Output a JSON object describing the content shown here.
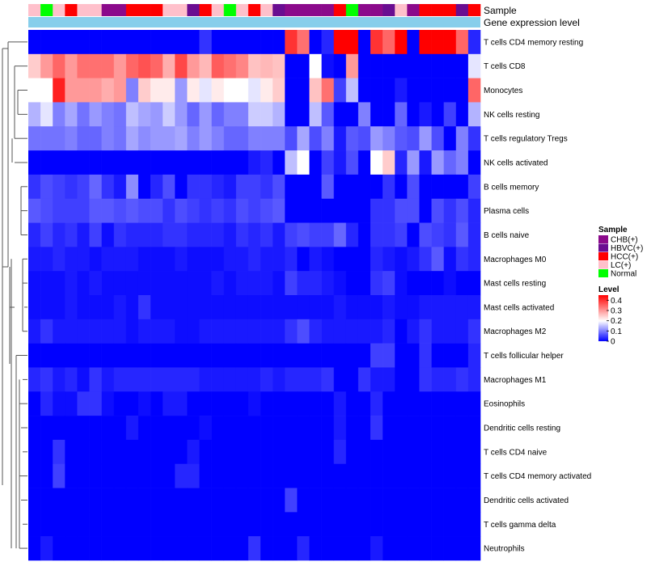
{
  "chart_data": {
    "type": "heatmap",
    "annotation_labels": [
      "Sample",
      "Gene expression level"
    ],
    "sample_colors": {
      "CHB(+)": "#8B0A8B",
      "HBVC(+)": "#6A0D91",
      "HCC(+)": "#FF0000",
      "LC(+)": "#FFC0CB",
      "Normal": "#00FF00"
    },
    "gene_expression_color": "#87CEEB",
    "columns": [
      "LC(+)",
      "Normal",
      "LC(+)",
      "HCC(+)",
      "LC(+)",
      "LC(+)",
      "CHB(+)",
      "CHB(+)",
      "HCC(+)",
      "HCC(+)",
      "HCC(+)",
      "LC(+)",
      "LC(+)",
      "HBVC(+)",
      "HCC(+)",
      "LC(+)",
      "Normal",
      "LC(+)",
      "HCC(+)",
      "LC(+)",
      "HBVC(+)",
      "CHB(+)",
      "CHB(+)",
      "CHB(+)",
      "CHB(+)",
      "HCC(+)",
      "Normal",
      "CHB(+)",
      "CHB(+)",
      "HBVC(+)",
      "LC(+)",
      "CHB(+)",
      "HCC(+)",
      "HCC(+)",
      "HCC(+)",
      "HBVC(+)",
      "HCC(+)"
    ],
    "rows": [
      "T cells CD4 memory resting",
      "T cells CD8",
      "Monocytes",
      "NK cells resting",
      "T cells regulatory  Tregs",
      "NK cells activated",
      "B cells memory",
      "Plasma cells",
      "B cells naive",
      "Macrophages M0",
      "Mast cells resting",
      "Mast cells activated",
      "Macrophages M2",
      "T cells follicular helper",
      "Macrophages M1",
      "Eosinophils",
      "Dendritic cells resting",
      "T cells CD4 naive",
      "T cells CD4 memory activated",
      "Dendritic cells activated",
      "T cells gamma delta",
      "Neutrophils"
    ],
    "values": [
      [
        0,
        0,
        0,
        0,
        0,
        0,
        0,
        0,
        0,
        0,
        0,
        0,
        0,
        0,
        0.04,
        0,
        0,
        0,
        0,
        0,
        0,
        0.4,
        0.34,
        0,
        0.03,
        0.45,
        0.45,
        0,
        0.4,
        0.35,
        0.45,
        0,
        0.45,
        0.45,
        0.45,
        0.35,
        0.03
      ],
      [
        0.25,
        0.3,
        0.35,
        0.3,
        0.34,
        0.34,
        0.34,
        0.3,
        0.35,
        0.37,
        0.35,
        0.28,
        0.38,
        0.3,
        0.27,
        0.36,
        0.34,
        0.32,
        0.26,
        0.27,
        0.26,
        0,
        0,
        0.2,
        0.01,
        0,
        0.3,
        0,
        0,
        0,
        0,
        0,
        0,
        0,
        0,
        0,
        0.18
      ],
      [
        0.2,
        0.2,
        0.42,
        0.3,
        0.3,
        0.3,
        0.28,
        0.3,
        0.1,
        0.25,
        0.22,
        0.22,
        0.12,
        0.22,
        0.18,
        0.22,
        0.2,
        0.2,
        0.18,
        0.22,
        0.25,
        0,
        0,
        0.26,
        0.34,
        0.05,
        0.15,
        0,
        0,
        0,
        0.02,
        0,
        0,
        0,
        0,
        0,
        0.35
      ],
      [
        0.14,
        0.18,
        0.1,
        0.13,
        0.09,
        0.12,
        0.1,
        0.09,
        0.15,
        0.13,
        0.12,
        0.16,
        0.12,
        0.08,
        0.12,
        0.08,
        0.1,
        0.1,
        0.16,
        0.16,
        0.14,
        0,
        0,
        0.15,
        0.07,
        0,
        0,
        0.1,
        0,
        0,
        0.08,
        0,
        0.02,
        0,
        0.05,
        0,
        0.14
      ],
      [
        0.09,
        0.09,
        0.09,
        0.1,
        0.08,
        0.08,
        0.1,
        0.09,
        0.13,
        0.11,
        0.12,
        0.12,
        0.13,
        0.1,
        0.12,
        0.1,
        0.08,
        0.08,
        0.1,
        0.1,
        0.1,
        0.06,
        0.13,
        0.06,
        0.1,
        0.02,
        0.07,
        0.06,
        0.12,
        0.1,
        0.07,
        0.06,
        0.12,
        0.06,
        0,
        0.1,
        0.04
      ],
      [
        0,
        0,
        0,
        0,
        0,
        0,
        0,
        0,
        0,
        0,
        0,
        0,
        0,
        0,
        0,
        0,
        0,
        0,
        0.02,
        0.03,
        0,
        0.15,
        0.2,
        0,
        0.05,
        0.02,
        0.06,
        0,
        0.2,
        0.25,
        0.03,
        0.12,
        0.02,
        0.12,
        0.08,
        0.1,
        0
      ],
      [
        0.04,
        0.06,
        0.05,
        0.04,
        0.05,
        0.08,
        0.04,
        0.02,
        0.11,
        0,
        0.03,
        0.06,
        0,
        0.04,
        0.04,
        0.03,
        0.02,
        0.05,
        0.05,
        0.04,
        0.06,
        0,
        0,
        0,
        0.07,
        0,
        0,
        0,
        0,
        0.04,
        0,
        0.06,
        0,
        0,
        0,
        0,
        0.05
      ],
      [
        0.07,
        0.06,
        0.05,
        0.05,
        0.05,
        0.07,
        0.07,
        0.06,
        0.07,
        0.06,
        0.06,
        0.04,
        0.06,
        0.05,
        0.04,
        0.05,
        0.04,
        0.06,
        0.05,
        0.06,
        0.07,
        0,
        0,
        0,
        0,
        0,
        0,
        0,
        0.04,
        0.04,
        0.06,
        0.06,
        0,
        0.06,
        0.04,
        0.06,
        0.03
      ],
      [
        0.03,
        0.05,
        0.03,
        0.04,
        0.02,
        0.05,
        0.01,
        0.04,
        0.03,
        0.03,
        0.03,
        0.04,
        0.04,
        0.03,
        0.03,
        0.03,
        0.02,
        0.04,
        0.03,
        0.04,
        0.02,
        0.05,
        0.06,
        0.05,
        0.05,
        0.08,
        0.03,
        0,
        0.04,
        0.04,
        0.05,
        0,
        0.06,
        0.05,
        0.04,
        0.07,
        0.03
      ],
      [
        0.02,
        0.02,
        0.03,
        0.02,
        0.02,
        0.01,
        0.02,
        0.02,
        0.02,
        0.01,
        0.01,
        0.01,
        0.02,
        0.01,
        0.01,
        0.01,
        0.02,
        0.02,
        0.03,
        0.02,
        0.02,
        0.03,
        0,
        0.02,
        0.01,
        0,
        0,
        0,
        0.03,
        0.02,
        0.01,
        0.02,
        0.04,
        0.07,
        0.01,
        0.04,
        0.03
      ],
      [
        0.01,
        0.01,
        0.01,
        0.02,
        0.01,
        0.02,
        0.01,
        0.01,
        0.01,
        0.01,
        0.01,
        0.01,
        0.01,
        0.01,
        0.01,
        0.02,
        0.01,
        0.02,
        0.02,
        0.02,
        0.01,
        0.05,
        0.03,
        0.03,
        0.02,
        0.01,
        0,
        0,
        0.04,
        0.05,
        0.01,
        0,
        0,
        0,
        0.01,
        0,
        0
      ],
      [
        0.01,
        0.01,
        0.01,
        0.02,
        0.01,
        0.01,
        0.01,
        0.02,
        0.01,
        0.04,
        0.01,
        0.01,
        0.01,
        0.01,
        0.01,
        0.01,
        0.01,
        0.01,
        0.01,
        0.01,
        0.01,
        0.01,
        0.01,
        0.01,
        0.01,
        0.02,
        0.01,
        0.01,
        0.01,
        0.02,
        0.01,
        0.01,
        0.02,
        0.02,
        0.02,
        0.02,
        0.02
      ],
      [
        0.02,
        0.04,
        0.02,
        0.02,
        0.02,
        0.02,
        0.02,
        0.02,
        0.01,
        0.02,
        0.02,
        0.02,
        0.01,
        0.01,
        0.02,
        0.02,
        0.02,
        0.02,
        0.02,
        0.02,
        0.02,
        0.04,
        0.06,
        0.03,
        0.02,
        0.02,
        0.02,
        0.02,
        0.02,
        0.03,
        0,
        0.02,
        0.04,
        0.02,
        0.02,
        0.02,
        0.04
      ],
      [
        0,
        0,
        0,
        0,
        0,
        0,
        0,
        0,
        0,
        0,
        0,
        0,
        0,
        0,
        0,
        0,
        0,
        0,
        0,
        0,
        0,
        0,
        0,
        0,
        0,
        0,
        0,
        0,
        0.05,
        0.05,
        0,
        0,
        0.04,
        0,
        0,
        0,
        0.03
      ],
      [
        0.03,
        0.04,
        0.02,
        0.03,
        0.01,
        0.04,
        0.02,
        0.03,
        0.03,
        0.03,
        0.03,
        0.03,
        0.03,
        0.03,
        0.02,
        0.02,
        0.02,
        0.02,
        0.02,
        0.03,
        0.02,
        0.03,
        0.03,
        0.03,
        0.04,
        0,
        0,
        0.04,
        0.02,
        0.02,
        0,
        0,
        0.04,
        0.03,
        0.03,
        0.04,
        0.03
      ],
      [
        0,
        0.03,
        0.01,
        0.01,
        0.04,
        0.04,
        0.01,
        0,
        0,
        0.01,
        0,
        0.02,
        0.02,
        0,
        0,
        0,
        0,
        0,
        0.01,
        0,
        0,
        0,
        0,
        0,
        0,
        0.02,
        0,
        0,
        0.03,
        0,
        0,
        0,
        0,
        0,
        0,
        0,
        0
      ],
      [
        0,
        0,
        0,
        0,
        0,
        0,
        0,
        0,
        0.02,
        0,
        0,
        0,
        0,
        0,
        0.01,
        0,
        0,
        0,
        0,
        0,
        0,
        0,
        0,
        0,
        0,
        0.02,
        0,
        0,
        0.04,
        0,
        0,
        0,
        0,
        0,
        0,
        0,
        0
      ],
      [
        0,
        0,
        0.04,
        0,
        0,
        0,
        0,
        0,
        0,
        0,
        0,
        0,
        0,
        0.02,
        0,
        0,
        0,
        0,
        0,
        0,
        0,
        0,
        0,
        0,
        0,
        0.03,
        0,
        0,
        0,
        0,
        0,
        0,
        0,
        0,
        0,
        0,
        0
      ],
      [
        0,
        0,
        0.05,
        0,
        0,
        0,
        0,
        0,
        0,
        0,
        0,
        0,
        0.03,
        0.03,
        0,
        0,
        0,
        0,
        0,
        0,
        0,
        0,
        0,
        0,
        0,
        0,
        0,
        0,
        0,
        0,
        0,
        0,
        0,
        0,
        0,
        0,
        0
      ],
      [
        0,
        0,
        0,
        0,
        0,
        0,
        0,
        0,
        0,
        0,
        0,
        0,
        0,
        0,
        0,
        0,
        0,
        0,
        0,
        0,
        0,
        0.05,
        0,
        0,
        0,
        0,
        0,
        0,
        0,
        0,
        0,
        0,
        0,
        0,
        0,
        0,
        0
      ],
      [
        0,
        0,
        0,
        0,
        0,
        0,
        0,
        0,
        0,
        0,
        0,
        0,
        0,
        0,
        0,
        0,
        0,
        0,
        0,
        0,
        0,
        0,
        0,
        0,
        0,
        0,
        0,
        0,
        0,
        0,
        0,
        0,
        0,
        0,
        0,
        0,
        0
      ],
      [
        0,
        0.02,
        0,
        0,
        0,
        0,
        0,
        0,
        0,
        0,
        0,
        0,
        0,
        0,
        0,
        0,
        0,
        0,
        0.04,
        0,
        0,
        0,
        0.03,
        0,
        0,
        0,
        0,
        0,
        0.02,
        0,
        0,
        0,
        0,
        0,
        0,
        0,
        0
      ]
    ],
    "legend": {
      "sample_title": "Sample",
      "sample_items": [
        "CHB(+)",
        "HBVC(+)",
        "HCC(+)",
        "LC(+)",
        "Normal"
      ],
      "level_title": "Level",
      "level_ticks": [
        "0.4",
        "0.3",
        "0.2",
        "0.1",
        "0"
      ],
      "scale_colors": [
        "#0000FF",
        "#FFFFFF",
        "#FF0000"
      ],
      "scale_range": [
        0,
        0.45
      ]
    }
  }
}
